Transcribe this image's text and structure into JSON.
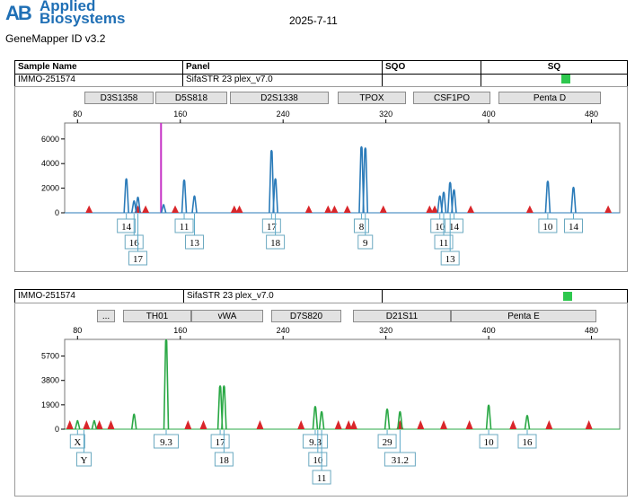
{
  "header": {
    "logo_line1": "Applied",
    "logo_line2": "Biosystems",
    "software": "GeneMapper ID v3.2",
    "date": "2025-7-11"
  },
  "info_table": {
    "headers": [
      "Sample Name",
      "Panel",
      "SQO",
      "SQ"
    ],
    "sample_name": "IMMO-251574",
    "panel": "SifaSTR 23 plex_v7.0",
    "sq_color": "#2ec84e"
  },
  "colors": {
    "blue": "#2b7bb9",
    "green": "#2aa845",
    "red": "#d9262a",
    "magenta": "#c531c5"
  },
  "chart_data": [
    {
      "type": "line",
      "channel": "blue",
      "x_axis_ticks": [
        80,
        160,
        240,
        320,
        400,
        480
      ],
      "xlim": [
        70,
        502
      ],
      "y_axis_ticks": [
        0,
        2000,
        4000,
        6000
      ],
      "ylim": [
        0,
        7300
      ],
      "markers": [
        "D3S1358",
        "D5S818",
        "D2S1338",
        "TPOX",
        "CSF1PO",
        "Penta D"
      ],
      "peaks": [
        {
          "x": 118,
          "y": 2800
        },
        {
          "x": 124,
          "y": 1000
        },
        {
          "x": 127,
          "y": 1300
        },
        {
          "x": 147,
          "y": 700
        },
        {
          "x": 163,
          "y": 2700
        },
        {
          "x": 171,
          "y": 1400
        },
        {
          "x": 231,
          "y": 5100
        },
        {
          "x": 234,
          "y": 2800
        },
        {
          "x": 301,
          "y": 5400
        },
        {
          "x": 304,
          "y": 5300
        },
        {
          "x": 362,
          "y": 1400
        },
        {
          "x": 365,
          "y": 1700
        },
        {
          "x": 370,
          "y": 2500
        },
        {
          "x": 373,
          "y": 1900
        },
        {
          "x": 446,
          "y": 2600
        },
        {
          "x": 466,
          "y": 2100
        }
      ],
      "size_standard_peaks": [
        89,
        127,
        133,
        156,
        202,
        206,
        260,
        275,
        280,
        290,
        318,
        354,
        358,
        386,
        432,
        493
      ],
      "size_standard_height": 600,
      "offscale_x": 145,
      "allele_labels": [
        {
          "text": "14",
          "x": 118,
          "row": 0
        },
        {
          "text": "16",
          "x": 124,
          "row": 1
        },
        {
          "text": "17",
          "x": 127,
          "row": 2
        },
        {
          "text": "11",
          "x": 163,
          "row": 0
        },
        {
          "text": "13",
          "x": 171,
          "row": 1
        },
        {
          "text": "17",
          "x": 231,
          "row": 0
        },
        {
          "text": "18",
          "x": 234,
          "row": 1
        },
        {
          "text": "8",
          "x": 301,
          "row": 0
        },
        {
          "text": "9",
          "x": 304,
          "row": 1
        },
        {
          "text": "10",
          "x": 362,
          "row": 0
        },
        {
          "text": "14",
          "x": 373,
          "row": 0
        },
        {
          "text": "11",
          "x": 365,
          "row": 1
        },
        {
          "text": "13",
          "x": 370,
          "row": 2
        },
        {
          "text": "10",
          "x": 446,
          "row": 0
        },
        {
          "text": "14",
          "x": 466,
          "row": 0
        }
      ]
    },
    {
      "type": "line",
      "channel": "green",
      "x_axis_ticks": [
        80,
        160,
        240,
        320,
        400,
        480
      ],
      "xlim": [
        70,
        502
      ],
      "y_axis_ticks": [
        0,
        1900,
        3800,
        5700
      ],
      "ylim": [
        0,
        7000
      ],
      "markers": [
        "...",
        "TH01",
        "vWA",
        "D7S820",
        "D21S11",
        "Penta E"
      ],
      "peaks": [
        {
          "x": 80,
          "y": 700
        },
        {
          "x": 93,
          "y": 700
        },
        {
          "x": 124,
          "y": 1200
        },
        {
          "x": 149,
          "y": 7000
        },
        {
          "x": 191,
          "y": 3400
        },
        {
          "x": 194,
          "y": 3400
        },
        {
          "x": 265,
          "y": 1800
        },
        {
          "x": 270,
          "y": 1400
        },
        {
          "x": 321,
          "y": 1600
        },
        {
          "x": 331,
          "y": 1400
        },
        {
          "x": 400,
          "y": 1900
        },
        {
          "x": 430,
          "y": 1100
        }
      ],
      "size_standard_peaks": [
        74,
        87,
        97,
        106,
        166,
        178,
        222,
        254,
        283,
        291,
        295,
        331,
        347,
        365,
        385,
        419,
        447,
        478
      ],
      "size_standard_height": 700,
      "allele_labels": [
        {
          "text": "X",
          "x": 80,
          "row": 0
        },
        {
          "text": "Y",
          "x": 85,
          "row": 1
        },
        {
          "text": "9.3",
          "x": 149,
          "row": 0
        },
        {
          "text": "17",
          "x": 191,
          "row": 0
        },
        {
          "text": "18",
          "x": 194,
          "row": 1
        },
        {
          "text": "9.3",
          "x": 265,
          "row": 0
        },
        {
          "text": "10",
          "x": 267,
          "row": 1
        },
        {
          "text": "11",
          "x": 270,
          "row": 2
        },
        {
          "text": "29",
          "x": 321,
          "row": 0
        },
        {
          "text": "31.2",
          "x": 331,
          "row": 1
        },
        {
          "text": "10",
          "x": 400,
          "row": 0
        },
        {
          "text": "16",
          "x": 430,
          "row": 0
        }
      ]
    }
  ]
}
